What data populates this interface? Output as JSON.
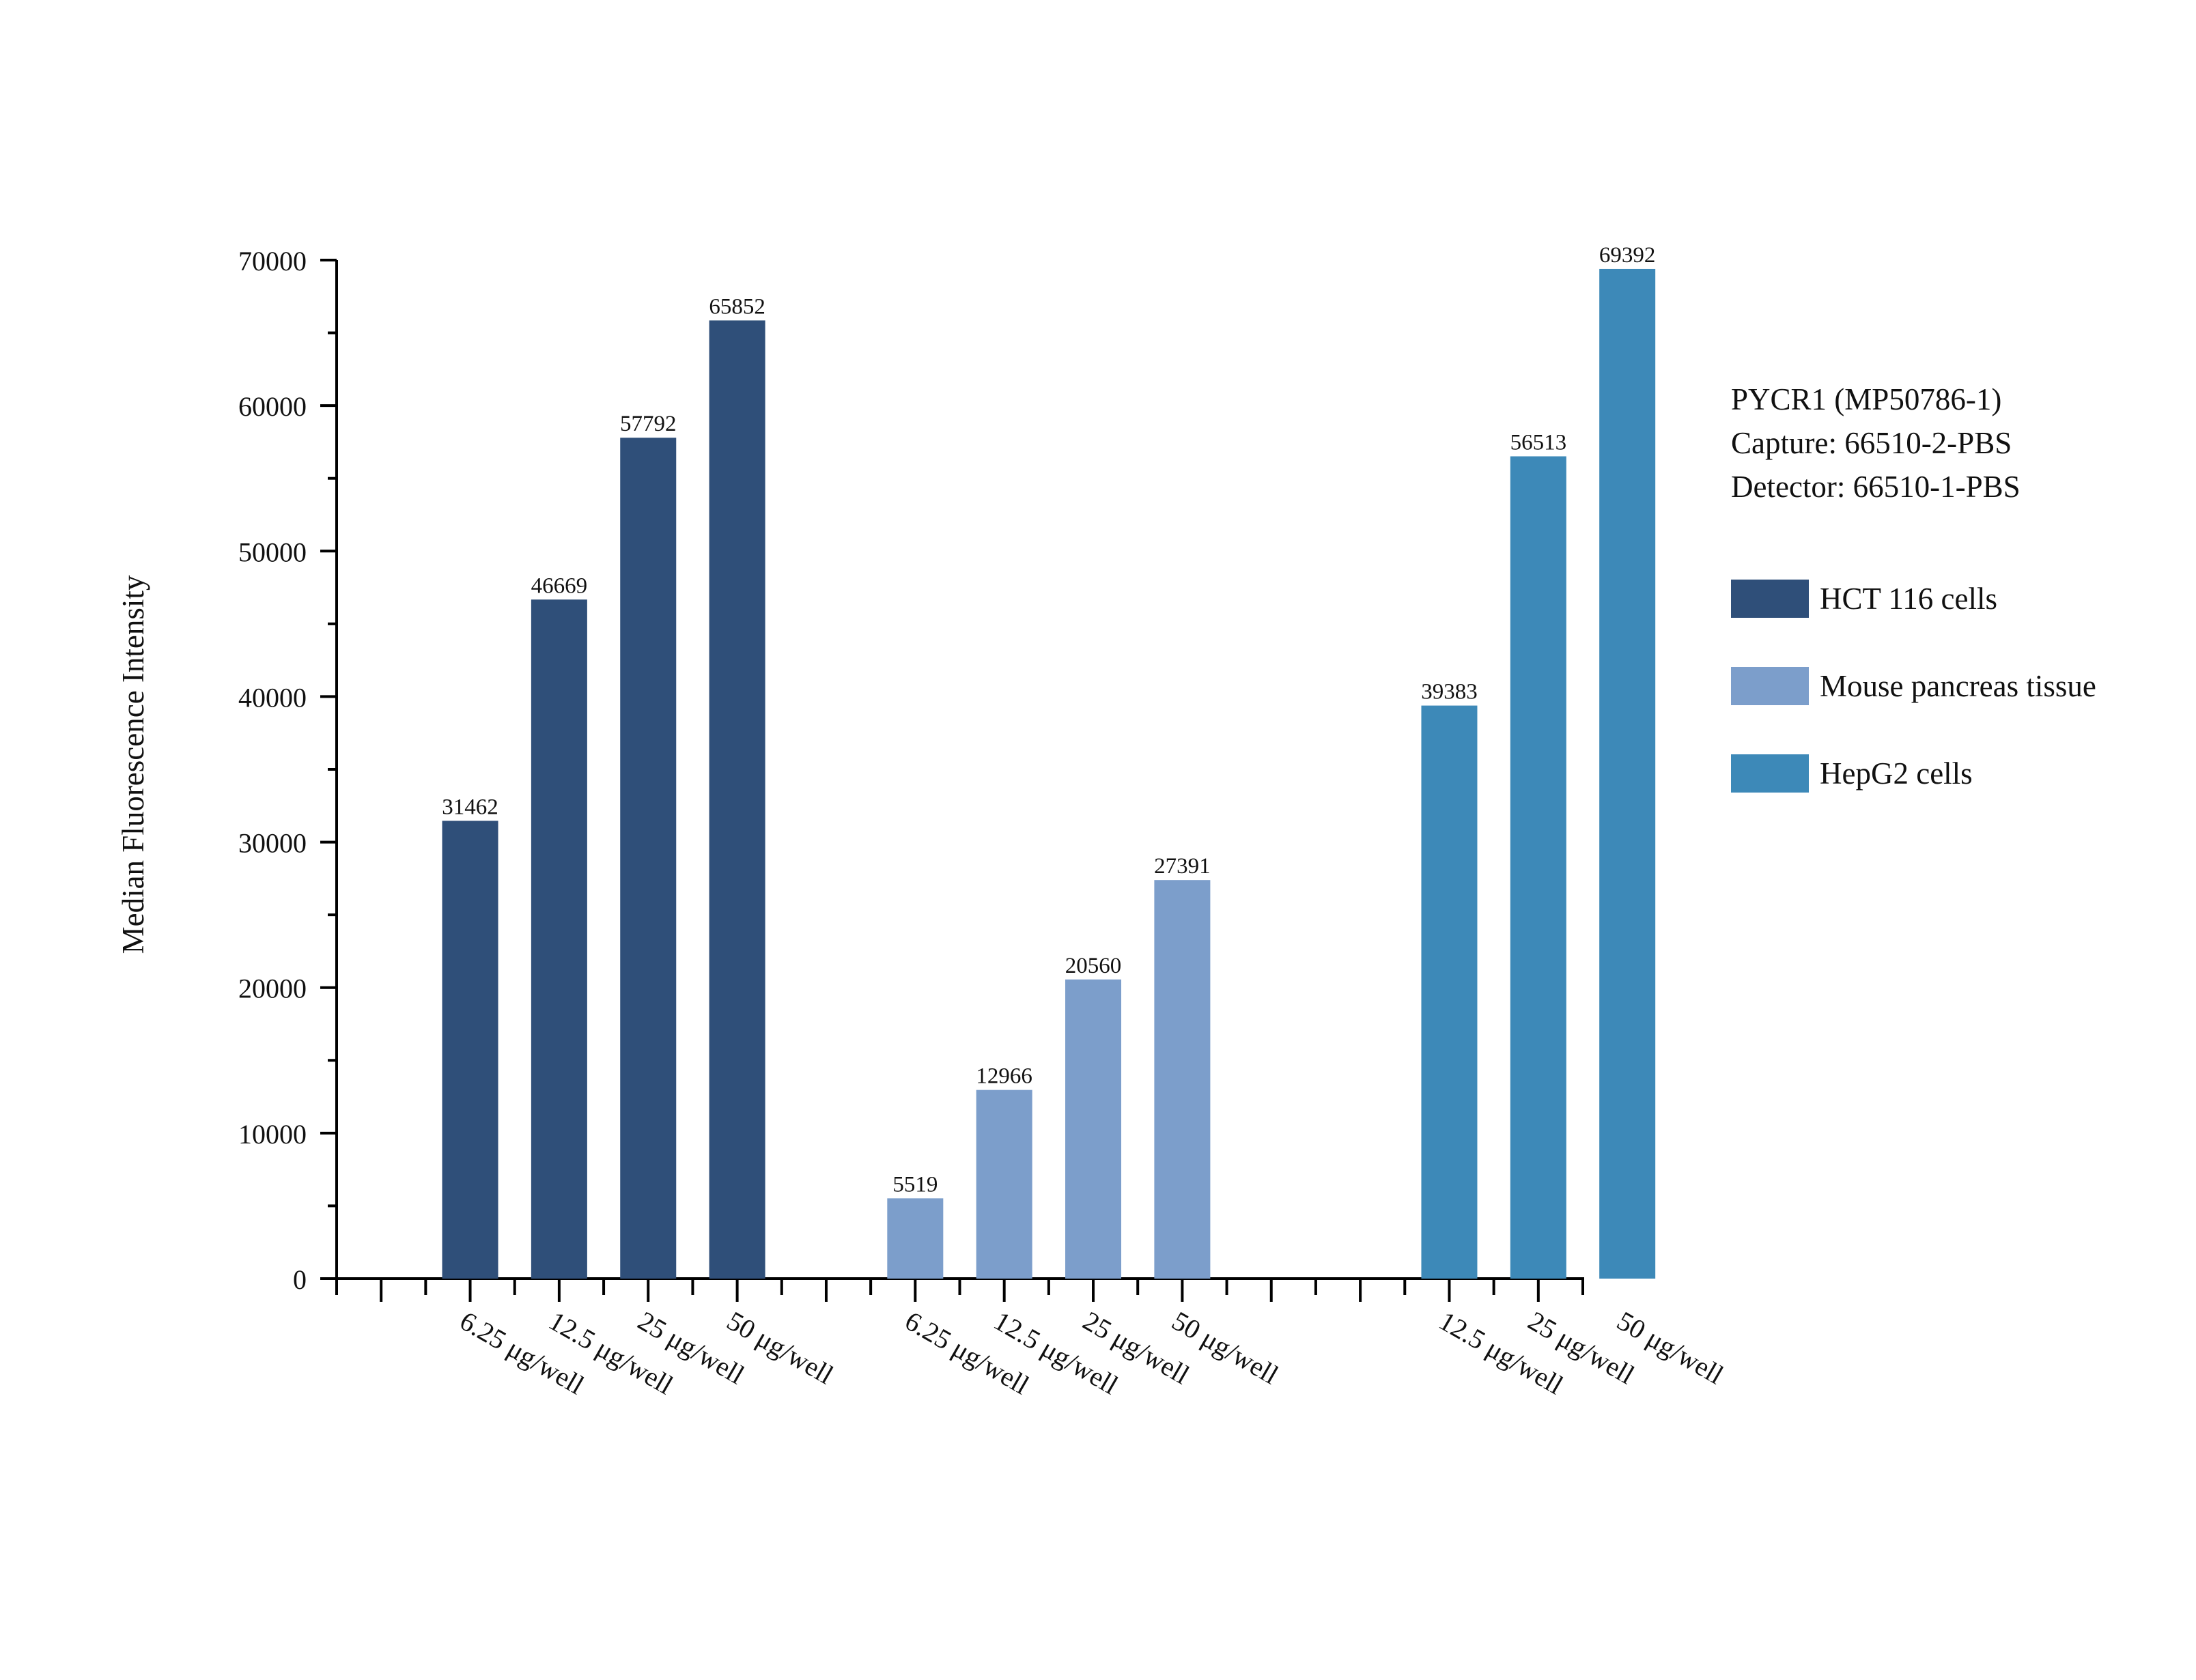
{
  "chart_data": {
    "type": "bar",
    "ylabel": "Median Fluorescence Intensity",
    "xlabel": "",
    "ylim": [
      0,
      70000
    ],
    "yticks": [
      0,
      10000,
      20000,
      30000,
      40000,
      50000,
      60000,
      70000
    ],
    "title_lines": [
      "PYCR1 (MP50786-1)",
      "Capture: 66510-2-PBS",
      "Detector: 66510-1-PBS"
    ],
    "legend_position": "right",
    "series": [
      {
        "name": "HCT 116 cells",
        "color": "#2f4f79",
        "categories": [
          "6.25 μg/well",
          "12.5 μg/well",
          "25 μg/well",
          "50 μg/well"
        ],
        "values": [
          31462,
          46669,
          57792,
          65852
        ]
      },
      {
        "name": "Mouse pancreas tissue",
        "color": "#7c9ecb",
        "categories": [
          "6.25 μg/well",
          "12.5 μg/well",
          "25 μg/well",
          "50 μg/well"
        ],
        "values": [
          5519,
          12966,
          20560,
          27391
        ]
      },
      {
        "name": "HepG2 cells",
        "color": "#3d89b8",
        "categories": [
          "12.5 μg/well",
          "25 μg/well",
          "50 μg/well"
        ],
        "values": [
          39383,
          56513,
          69392
        ]
      }
    ]
  }
}
